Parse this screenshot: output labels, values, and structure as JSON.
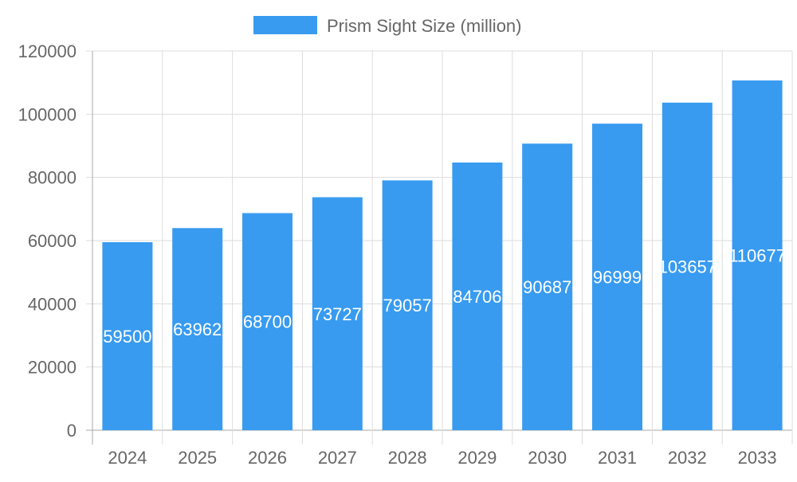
{
  "chart_data": {
    "type": "bar",
    "title": "",
    "xlabel": "",
    "ylabel": "",
    "categories": [
      "2024",
      "2025",
      "2026",
      "2027",
      "2028",
      "2029",
      "2030",
      "2031",
      "2032",
      "2033"
    ],
    "series": [
      {
        "name": "Prism Sight Size (million)",
        "values": [
          59500,
          63962,
          68700,
          73727,
          79057,
          84706,
          90687,
          96999,
          103657,
          110677
        ],
        "color": "#389bf0"
      }
    ],
    "ylim": [
      0,
      120000
    ],
    "yticks": [
      0,
      20000,
      40000,
      60000,
      80000,
      100000,
      120000
    ],
    "grid": true,
    "legend": "top",
    "data_labels": true
  }
}
